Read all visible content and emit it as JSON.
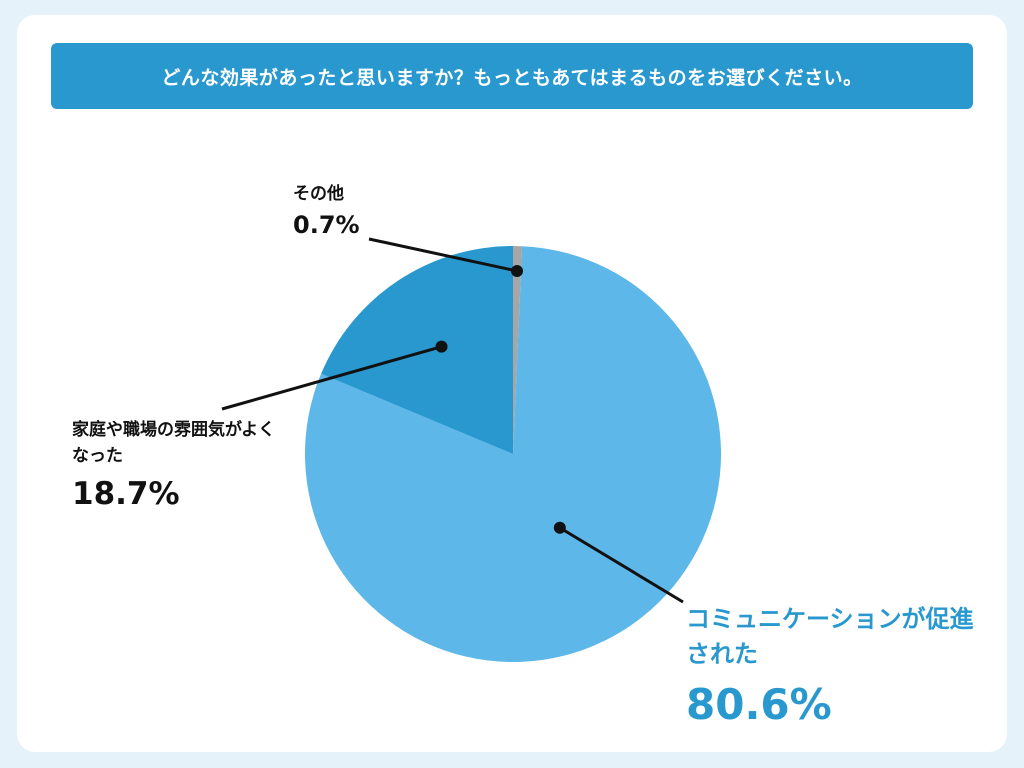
{
  "question": "どんな効果があったと思いますか？もっともあてはまるものをお選びください。",
  "colors": {
    "page_background": "#e6f2fa",
    "banner": "#2898cf",
    "communication": "#5db7e8",
    "atmosphere": "#2898cf",
    "other": "#a6a6a6",
    "leader_line": "#111111"
  },
  "chart_data": {
    "type": "pie",
    "title": "",
    "slices": [
      {
        "key": "other",
        "label": "その他",
        "value": 0.7,
        "value_text": "0.7%",
        "color": "#a6a6a6"
      },
      {
        "key": "communication",
        "label": "コミュニケーションが促進された",
        "value": 80.6,
        "value_text": "80.6%",
        "color": "#5db7e8"
      },
      {
        "key": "atmosphere",
        "label": "家庭や職場の雰囲気がよくなった",
        "value": 18.7,
        "value_text": "18.7%",
        "color": "#2898cf"
      }
    ],
    "start": "12 o'clock",
    "direction": "clockwise",
    "legend": "none",
    "labels": "outside with leader lines"
  }
}
